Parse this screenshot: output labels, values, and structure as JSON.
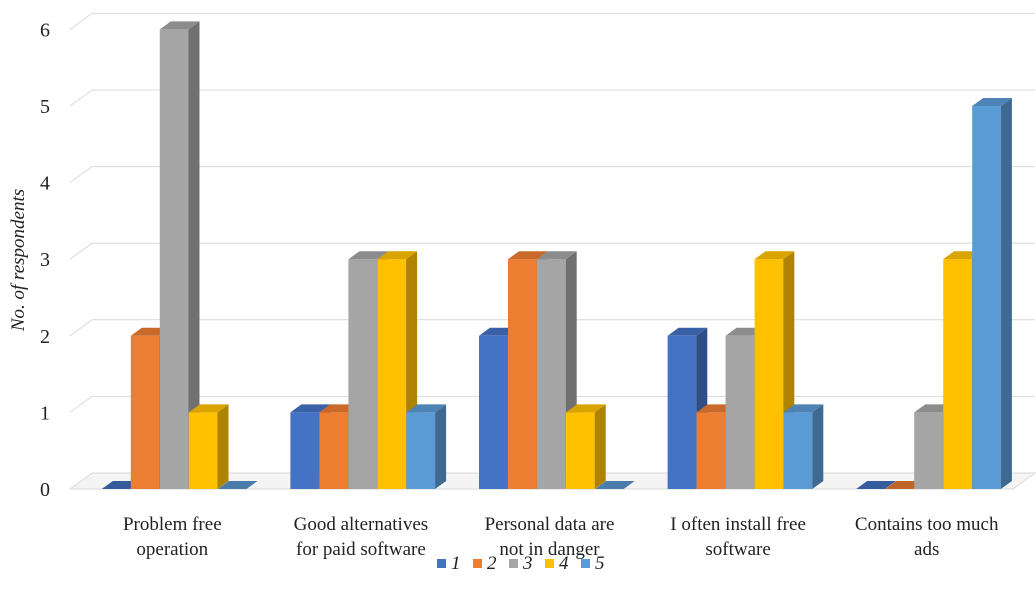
{
  "chart_data": {
    "type": "bar",
    "ylabel": "No. of respondents",
    "xlabel": "",
    "ylim": [
      0,
      6
    ],
    "yticks": [
      "0",
      "1",
      "2",
      "3",
      "4",
      "5",
      "6"
    ],
    "grid": true,
    "legend_position": "bottom",
    "categories": [
      [
        "Problem free",
        "operation"
      ],
      [
        "Good alternatives",
        "for paid software"
      ],
      [
        "Personal data are",
        "not in danger"
      ],
      [
        "I often install free",
        "software"
      ],
      [
        "Contains too much",
        "ads"
      ]
    ],
    "series": [
      {
        "name": "1",
        "values": [
          0,
          1,
          2,
          2,
          0
        ],
        "color": "#4472C4"
      },
      {
        "name": "2",
        "values": [
          2,
          1,
          3,
          1,
          0
        ],
        "color": "#ED7D31"
      },
      {
        "name": "3",
        "values": [
          6,
          3,
          3,
          2,
          1
        ],
        "color": "#A5A5A5"
      },
      {
        "name": "4",
        "values": [
          1,
          3,
          1,
          3,
          3
        ],
        "color": "#FFC000"
      },
      {
        "name": "5",
        "values": [
          0,
          1,
          0,
          1,
          5
        ],
        "color": "#5B9BD5"
      }
    ]
  }
}
